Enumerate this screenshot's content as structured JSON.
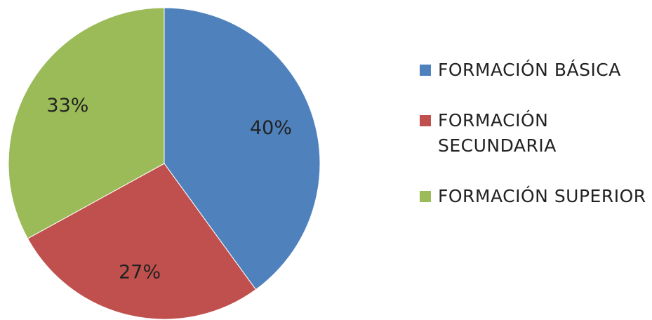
{
  "chart_data": {
    "type": "pie",
    "categories": [
      "FORMACIÓN BÁSICA",
      "FORMACIÓN SECUNDARIA",
      "FORMACIÓN SUPERIOR"
    ],
    "values": [
      40,
      27,
      33
    ],
    "labels": [
      "40%",
      "27%",
      "33%"
    ],
    "colors": [
      "#4f81bd",
      "#c0504d",
      "#9bbb59"
    ],
    "start_angle": "12 o'clock",
    "direction": "clockwise",
    "legend_position": "right",
    "title": ""
  }
}
